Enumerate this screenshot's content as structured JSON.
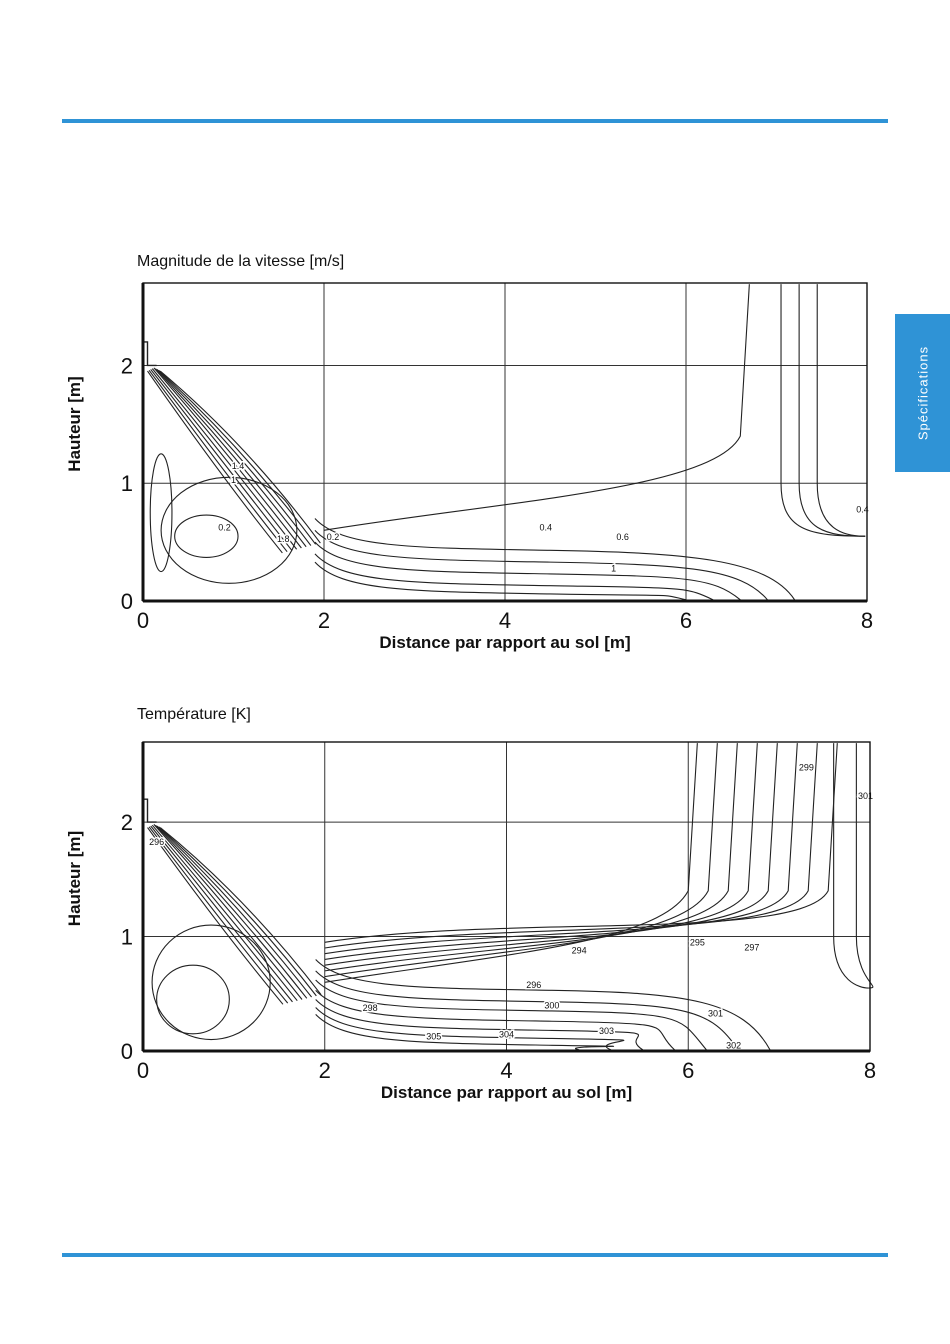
{
  "side_tab": {
    "label": "Spécifications"
  },
  "colors": {
    "accent": "#2f93d6",
    "contour": "#222222",
    "grid": "#333333"
  },
  "chart_data": [
    {
      "type": "contour",
      "title": "Magnitude de la vitesse [m/s]",
      "xlabel": "Distance par rapport au sol [m]",
      "ylabel": "Hauteur [m]",
      "xlim": [
        0,
        8
      ],
      "ylim": [
        0,
        2.7
      ],
      "xticks": [
        "0",
        "2",
        "4",
        "6",
        "8"
      ],
      "yticks": [
        "0",
        "1",
        "2"
      ],
      "grid": true,
      "contour_labels": [
        {
          "text": "0.2",
          "x": 0.9,
          "y": 0.6
        },
        {
          "text": "0.2",
          "x": 2.1,
          "y": 0.52
        },
        {
          "text": "0.4",
          "x": 4.45,
          "y": 0.6
        },
        {
          "text": "0.6",
          "x": 5.3,
          "y": 0.52
        },
        {
          "text": "1",
          "x": 5.2,
          "y": 0.25
        },
        {
          "text": "1.4",
          "x": 1.05,
          "y": 1.12
        },
        {
          "text": "1",
          "x": 1.0,
          "y": 1.0
        },
        {
          "text": "1.8",
          "x": 1.55,
          "y": 0.5
        },
        {
          "text": "0.4",
          "x": 7.95,
          "y": 0.75
        }
      ]
    },
    {
      "type": "contour",
      "title": "Température [K]",
      "xlabel": "Distance par rapport au sol [m]",
      "ylabel": "Hauteur [m]",
      "xlim": [
        0,
        8
      ],
      "ylim": [
        0,
        2.7
      ],
      "xticks": [
        "0",
        "2",
        "4",
        "6",
        "8"
      ],
      "yticks": [
        "0",
        "1",
        "2"
      ],
      "grid": true,
      "contour_labels": [
        {
          "text": "296",
          "x": 0.15,
          "y": 1.8
        },
        {
          "text": "294",
          "x": 4.8,
          "y": 0.85
        },
        {
          "text": "296",
          "x": 4.3,
          "y": 0.55
        },
        {
          "text": "298",
          "x": 2.5,
          "y": 0.35
        },
        {
          "text": "300",
          "x": 4.5,
          "y": 0.37
        },
        {
          "text": "305",
          "x": 3.2,
          "y": 0.1
        },
        {
          "text": "304",
          "x": 4.0,
          "y": 0.12
        },
        {
          "text": "303",
          "x": 5.1,
          "y": 0.15
        },
        {
          "text": "295",
          "x": 6.1,
          "y": 0.92
        },
        {
          "text": "297",
          "x": 6.7,
          "y": 0.88
        },
        {
          "text": "301",
          "x": 6.3,
          "y": 0.3
        },
        {
          "text": "299",
          "x": 7.3,
          "y": 2.45
        },
        {
          "text": "301",
          "x": 7.95,
          "y": 2.2
        },
        {
          "text": "302",
          "x": 6.5,
          "y": 0.02
        }
      ]
    }
  ]
}
